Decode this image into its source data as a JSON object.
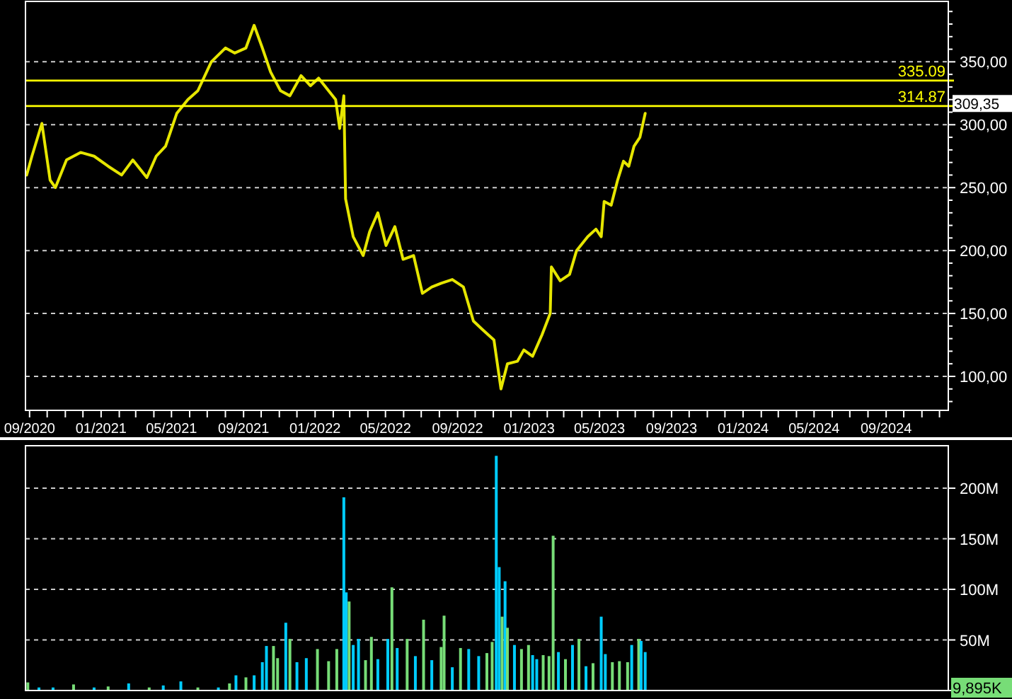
{
  "chart_data": [
    {
      "type": "line",
      "x": [
        "2020-08-27",
        "2020-09-05",
        "2020-09-22",
        "2020-10-06",
        "2020-10-15",
        "2020-11-03",
        "2020-11-27",
        "2020-12-20",
        "2021-01-13",
        "2021-02-05",
        "2021-02-24",
        "2021-03-20",
        "2021-04-05",
        "2021-04-21",
        "2021-05-10",
        "2021-05-29",
        "2021-06-15",
        "2021-07-08",
        "2021-08-01",
        "2021-08-17",
        "2021-09-05",
        "2021-09-19",
        "2021-10-03",
        "2021-10-17",
        "2021-11-03",
        "2021-11-19",
        "2021-12-08",
        "2021-12-24",
        "2022-01-07",
        "2022-01-24",
        "2022-02-05",
        "2022-02-12",
        "2022-02-19",
        "2022-02-22",
        "2022-03-07",
        "2022-03-24",
        "2022-04-04",
        "2022-04-18",
        "2022-05-02",
        "2022-05-17",
        "2022-05-31",
        "2022-06-18",
        "2022-07-03",
        "2022-07-19",
        "2022-08-04",
        "2022-08-23",
        "2022-09-11",
        "2022-09-28",
        "2022-10-14",
        "2022-11-02",
        "2022-11-14",
        "2022-11-25",
        "2022-12-12",
        "2022-12-23",
        "2023-01-07",
        "2023-01-23",
        "2023-02-06",
        "2023-02-08",
        "2023-02-23",
        "2023-03-11",
        "2023-03-23",
        "2023-04-11",
        "2023-04-25",
        "2023-05-04",
        "2023-05-09",
        "2023-05-21",
        "2023-06-01",
        "2023-06-11",
        "2023-06-20",
        "2023-06-29",
        "2023-07-09",
        "2023-07-18"
      ],
      "series": [
        {
          "color": "#e6e600",
          "values": [
            260,
            275,
            301,
            256,
            250,
            272,
            278,
            275,
            267,
            260,
            272,
            258,
            275,
            283,
            309,
            320,
            327,
            350,
            361,
            357,
            361,
            379,
            361,
            342,
            327,
            323,
            339,
            331,
            337,
            327,
            320,
            297,
            323,
            241,
            211,
            196,
            215,
            230,
            204,
            219,
            193,
            196,
            166,
            171,
            174,
            177,
            171,
            144,
            137,
            129,
            90,
            110,
            112,
            121,
            116,
            133,
            150,
            187,
            176,
            181,
            200,
            211,
            217,
            211,
            239,
            236,
            256,
            271,
            267,
            283,
            290,
            309
          ]
        }
      ],
      "xlim": [
        "2020-08-25",
        "2024-12-16"
      ],
      "xticks": [
        {
          "value": "2020-09-01",
          "label": "09/2020"
        },
        {
          "value": "2020-10-01",
          "label": null
        },
        {
          "value": "2020-11-01",
          "label": null
        },
        {
          "value": "2020-12-01",
          "label": null
        },
        {
          "value": "2021-01-01",
          "label": "01/2021"
        },
        {
          "value": "2021-02-01",
          "label": null
        },
        {
          "value": "2021-03-01",
          "label": null
        },
        {
          "value": "2021-04-01",
          "label": null
        },
        {
          "value": "2021-05-01",
          "label": "05/2021"
        },
        {
          "value": "2021-06-01",
          "label": null
        },
        {
          "value": "2021-07-01",
          "label": null
        },
        {
          "value": "2021-08-01",
          "label": null
        },
        {
          "value": "2021-09-01",
          "label": "09/2021"
        },
        {
          "value": "2021-10-01",
          "label": null
        },
        {
          "value": "2021-11-01",
          "label": null
        },
        {
          "value": "2021-12-01",
          "label": null
        },
        {
          "value": "2022-01-01",
          "label": "01/2022"
        },
        {
          "value": "2022-02-01",
          "label": null
        },
        {
          "value": "2022-03-01",
          "label": null
        },
        {
          "value": "2022-04-01",
          "label": null
        },
        {
          "value": "2022-05-01",
          "label": "05/2022"
        },
        {
          "value": "2022-06-01",
          "label": null
        },
        {
          "value": "2022-07-01",
          "label": null
        },
        {
          "value": "2022-08-01",
          "label": null
        },
        {
          "value": "2022-09-01",
          "label": "09/2022"
        },
        {
          "value": "2022-10-01",
          "label": null
        },
        {
          "value": "2022-11-01",
          "label": null
        },
        {
          "value": "2022-12-01",
          "label": null
        },
        {
          "value": "2023-01-01",
          "label": "01/2023"
        },
        {
          "value": "2023-02-01",
          "label": null
        },
        {
          "value": "2023-03-01",
          "label": null
        },
        {
          "value": "2023-04-01",
          "label": null
        },
        {
          "value": "2023-05-01",
          "label": "05/2023"
        },
        {
          "value": "2023-06-01",
          "label": null
        },
        {
          "value": "2023-07-01",
          "label": null
        },
        {
          "value": "2023-08-01",
          "label": null
        },
        {
          "value": "2023-09-01",
          "label": "09/2023"
        },
        {
          "value": "2023-10-01",
          "label": null
        },
        {
          "value": "2023-11-01",
          "label": null
        },
        {
          "value": "2023-12-01",
          "label": null
        },
        {
          "value": "2024-01-01",
          "label": "01/2024"
        },
        {
          "value": "2024-02-01",
          "label": null
        },
        {
          "value": "2024-03-01",
          "label": null
        },
        {
          "value": "2024-04-01",
          "label": null
        },
        {
          "value": "2024-05-01",
          "label": "05/2024"
        },
        {
          "value": "2024-06-01",
          "label": null
        },
        {
          "value": "2024-07-01",
          "label": null
        },
        {
          "value": "2024-08-01",
          "label": null
        },
        {
          "value": "2024-09-01",
          "label": "09/2024"
        },
        {
          "value": "2024-10-01",
          "label": null
        },
        {
          "value": "2024-11-01",
          "label": null
        },
        {
          "value": "2024-12-01",
          "label": null
        }
      ],
      "ylim": [
        73,
        398
      ],
      "yticks": [
        {
          "value": 80,
          "label": null
        },
        {
          "value": 90,
          "label": null
        },
        {
          "value": 100,
          "label": "100,00"
        },
        {
          "value": 110,
          "label": null
        },
        {
          "value": 120,
          "label": null
        },
        {
          "value": 130,
          "label": null
        },
        {
          "value": 140,
          "label": null
        },
        {
          "value": 150,
          "label": "150,00"
        },
        {
          "value": 160,
          "label": null
        },
        {
          "value": 170,
          "label": null
        },
        {
          "value": 180,
          "label": null
        },
        {
          "value": 190,
          "label": null
        },
        {
          "value": 200,
          "label": "200,00"
        },
        {
          "value": 210,
          "label": null
        },
        {
          "value": 220,
          "label": null
        },
        {
          "value": 230,
          "label": null
        },
        {
          "value": 240,
          "label": null
        },
        {
          "value": 250,
          "label": "250,00"
        },
        {
          "value": 260,
          "label": null
        },
        {
          "value": 270,
          "label": null
        },
        {
          "value": 280,
          "label": null
        },
        {
          "value": 290,
          "label": null
        },
        {
          "value": 300,
          "label": "300,00"
        },
        {
          "value": 310,
          "label": null
        },
        {
          "value": 320,
          "label": null
        },
        {
          "value": 330,
          "label": null
        },
        {
          "value": 340,
          "label": null
        },
        {
          "value": 350,
          "label": "350,00"
        },
        {
          "value": 360,
          "label": null
        },
        {
          "value": 370,
          "label": null
        },
        {
          "value": 380,
          "label": null
        },
        {
          "value": 390,
          "label": null
        }
      ],
      "grid": "y",
      "line_style": "solid",
      "ref_lines": [
        {
          "axis": "y",
          "value": 335.09,
          "label": "335.09",
          "color": "#ffff00"
        },
        {
          "axis": "y",
          "value": 314.87,
          "label": "314.87",
          "color": "#ffff00"
        }
      ],
      "annotations": [
        "309,35"
      ]
    },
    {
      "type": "bar",
      "x": [
        "2020-08-29",
        "2020-09-17",
        "2020-10-11",
        "2020-11-15",
        "2020-12-20",
        "2021-01-13",
        "2021-02-17",
        "2021-03-24",
        "2021-04-17",
        "2021-05-17",
        "2021-06-15",
        "2021-07-20",
        "2021-08-08",
        "2021-08-19",
        "2021-09-05",
        "2021-09-19",
        "2021-10-03",
        "2021-10-10",
        "2021-10-22",
        "2021-10-29",
        "2021-11-12",
        "2021-11-19",
        "2021-12-01",
        "2021-12-17",
        "2022-01-05",
        "2022-01-24",
        "2022-02-07",
        "2022-02-19",
        "2022-02-23",
        "2022-02-28",
        "2022-03-07",
        "2022-03-16",
        "2022-03-28",
        "2022-04-07",
        "2022-04-18",
        "2022-05-05",
        "2022-05-12",
        "2022-05-21",
        "2022-06-07",
        "2022-06-21",
        "2022-07-05",
        "2022-07-19",
        "2022-08-04",
        "2022-08-09",
        "2022-08-23",
        "2022-09-06",
        "2022-09-20",
        "2022-10-07",
        "2022-10-21",
        "2022-10-30",
        "2022-11-06",
        "2022-11-11",
        "2022-11-16",
        "2022-11-21",
        "2022-11-25",
        "2022-12-07",
        "2022-12-19",
        "2022-12-31",
        "2023-01-07",
        "2023-01-14",
        "2023-01-25",
        "2023-02-04",
        "2023-02-11",
        "2023-02-20",
        "2023-03-04",
        "2023-03-16",
        "2023-03-27",
        "2023-04-08",
        "2023-04-20",
        "2023-05-04",
        "2023-05-11",
        "2023-05-23",
        "2023-06-04",
        "2023-06-18",
        "2023-06-25",
        "2023-07-07",
        "2023-07-11",
        "2023-07-18"
      ],
      "values": [
        8,
        3,
        3,
        6,
        3,
        4,
        7,
        3,
        5,
        9,
        3,
        3,
        7,
        15,
        13,
        15,
        28,
        44,
        44,
        32,
        67,
        51,
        28,
        32,
        41,
        29,
        41,
        191,
        97,
        88,
        45,
        51,
        30,
        53,
        31,
        51,
        102,
        42,
        51,
        34,
        70,
        30,
        43,
        74,
        23,
        42,
        41,
        34,
        37,
        48,
        232,
        122,
        73,
        108,
        62,
        45,
        41,
        45,
        35,
        31,
        35,
        34,
        153,
        38,
        31,
        45,
        51,
        24,
        27,
        73,
        36,
        28,
        29,
        28,
        45,
        51,
        49,
        38
      ],
      "colors": [
        "#77dd77",
        "#00ccff",
        "#00ccff",
        "#77dd77",
        "#00ccff",
        "#77dd77",
        "#00ccff",
        "#77dd77",
        "#00ccff",
        "#00ccff",
        "#77dd77",
        "#00ccff",
        "#77dd77",
        "#00ccff",
        "#77dd77",
        "#00ccff",
        "#00ccff",
        "#00ccff",
        "#77dd77",
        "#77dd77",
        "#00ccff",
        "#77dd77",
        "#00ccff",
        "#00ccff",
        "#77dd77",
        "#77dd77",
        "#77dd77",
        "#00ccff",
        "#00ccff",
        "#77dd77",
        "#00ccff",
        "#00ccff",
        "#77dd77",
        "#77dd77",
        "#00ccff",
        "#00ccff",
        "#77dd77",
        "#00ccff",
        "#77dd77",
        "#00ccff",
        "#77dd77",
        "#00ccff",
        "#77dd77",
        "#77dd77",
        "#00ccff",
        "#77dd77",
        "#00ccff",
        "#00ccff",
        "#77dd77",
        "#77dd77",
        "#00ccff",
        "#00ccff",
        "#77dd77",
        "#00ccff",
        "#77dd77",
        "#00ccff",
        "#77dd77",
        "#77dd77",
        "#00ccff",
        "#00ccff",
        "#77dd77",
        "#77dd77",
        "#77dd77",
        "#00ccff",
        "#77dd77",
        "#00ccff",
        "#77dd77",
        "#00ccff",
        "#77dd77",
        "#00ccff",
        "#00ccff",
        "#77dd77",
        "#77dd77",
        "#77dd77",
        "#00ccff",
        "#77dd77",
        "#00ccff",
        "#00ccff"
      ],
      "xlim": [
        "2020-08-25",
        "2024-12-16"
      ],
      "ylim": [
        0,
        242
      ],
      "yticks": [
        {
          "value": 0,
          "label": null
        },
        {
          "value": 50,
          "label": "50M"
        },
        {
          "value": 100,
          "label": "100M"
        },
        {
          "value": 150,
          "label": "150M"
        },
        {
          "value": 200,
          "label": "200M"
        }
      ],
      "grid": "y",
      "tick_labels": "y",
      "annotations": [
        "9,895K"
      ]
    }
  ]
}
